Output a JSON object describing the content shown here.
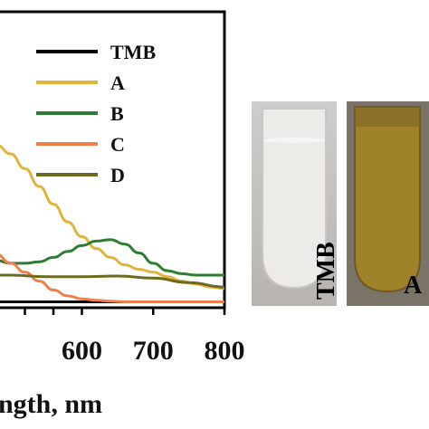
{
  "chart_data": {
    "type": "line",
    "xlabel": "ngth, nm",
    "xlim": [
      480,
      800
    ],
    "ylim": [
      0,
      1.0
    ],
    "x_ticks": [
      600,
      700,
      800
    ],
    "x_tick_labels": [
      "600",
      "700",
      "800"
    ],
    "legend_position": "top-right",
    "series": [
      {
        "name": "TMB",
        "color": "#000000",
        "x": [
          480,
          500,
          550,
          600,
          650,
          700,
          750,
          800
        ],
        "y": [
          0.02,
          0.02,
          0.02,
          0.02,
          0.02,
          0.02,
          0.02,
          0.02
        ]
      },
      {
        "name": "A",
        "color": "#e0b43a",
        "x": [
          480,
          500,
          520,
          540,
          560,
          580,
          600,
          620,
          640,
          660,
          680,
          700,
          720,
          740,
          760,
          780,
          800
        ],
        "y": [
          0.55,
          0.52,
          0.47,
          0.41,
          0.35,
          0.29,
          0.24,
          0.2,
          0.17,
          0.145,
          0.13,
          0.12,
          0.105,
          0.09,
          0.08,
          0.07,
          0.065
        ]
      },
      {
        "name": "B",
        "color": "#2e7d32",
        "x": [
          480,
          500,
          520,
          540,
          560,
          580,
          600,
          620,
          640,
          660,
          680,
          700,
          720,
          740,
          760,
          780,
          800
        ],
        "y": [
          0.16,
          0.15,
          0.15,
          0.155,
          0.17,
          0.19,
          0.21,
          0.225,
          0.23,
          0.215,
          0.185,
          0.15,
          0.125,
          0.115,
          0.11,
          0.11,
          0.11
        ]
      },
      {
        "name": "C",
        "color": "#f07f4a",
        "x": [
          480,
          500,
          520,
          540,
          560,
          580,
          600,
          620,
          640,
          660,
          680,
          700,
          720,
          740,
          760,
          780,
          800
        ],
        "y": [
          0.18,
          0.15,
          0.12,
          0.09,
          0.06,
          0.04,
          0.03,
          0.025,
          0.022,
          0.02,
          0.02,
          0.02,
          0.02,
          0.02,
          0.02,
          0.02,
          0.02
        ]
      },
      {
        "name": "D",
        "color": "#6b6a1e",
        "x": [
          480,
          500,
          550,
          600,
          650,
          700,
          750,
          800
        ],
        "y": [
          0.11,
          0.11,
          0.105,
          0.105,
          0.107,
          0.1,
          0.085,
          0.07
        ]
      }
    ]
  },
  "vials": [
    {
      "label": "TMB",
      "liquid_color": "#e4e4e2"
    },
    {
      "label": "A",
      "liquid_color": "#a0822b"
    }
  ]
}
